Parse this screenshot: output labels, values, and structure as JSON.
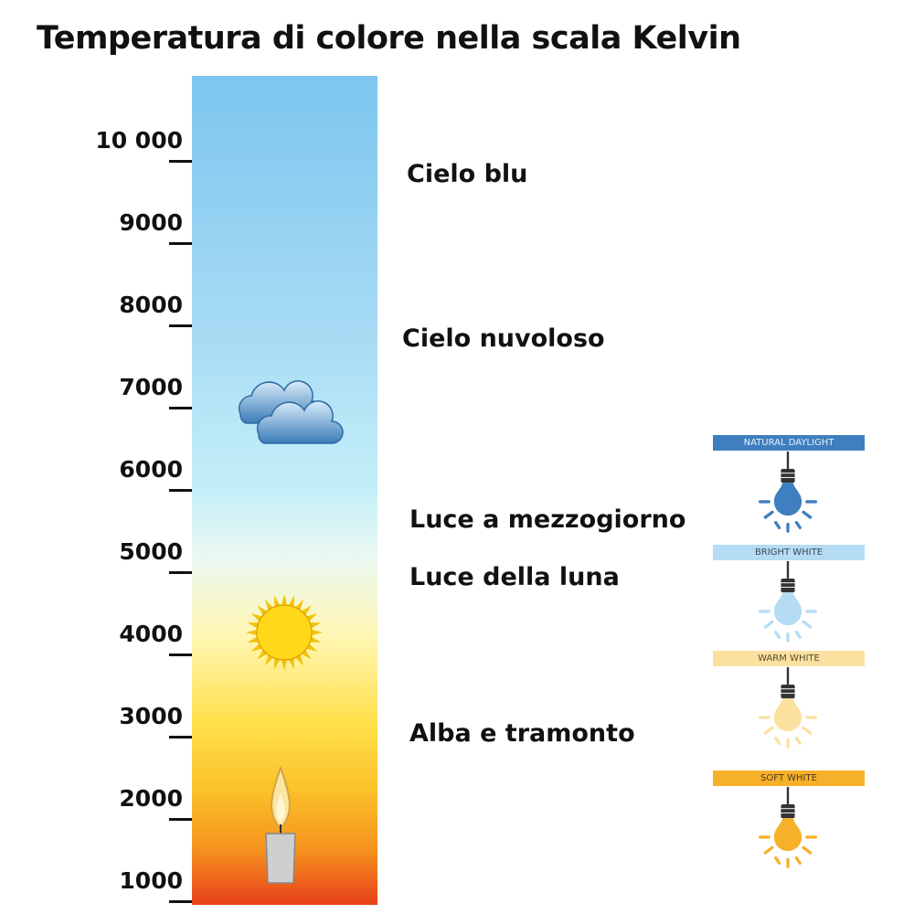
{
  "title": "Temperatura di colore nella scala Kelvin",
  "scale": {
    "ticks": [
      "10 000",
      "9000",
      "8000",
      "7000",
      "6000",
      "5000",
      "4000",
      "3000",
      "2000",
      "1000"
    ]
  },
  "labels": [
    {
      "text": "Cielo blu",
      "kelvin": 9800
    },
    {
      "text": "Cielo nuvoloso",
      "kelvin": 7800
    },
    {
      "text": "Luce a mezzogiorno",
      "kelvin": 5600
    },
    {
      "text": "Luce della luna",
      "kelvin": 4900
    },
    {
      "text": "Alba e tramonto",
      "kelvin": 3000
    }
  ],
  "icons": [
    "cloud-icon",
    "sun-icon",
    "candle-icon"
  ],
  "bulbs": [
    {
      "label": "NATURAL DAYLIGHT",
      "color": "#3f7fbf",
      "banner": "#3f7fbf",
      "text_color": "#e8f1fa"
    },
    {
      "label": "BRIGHT WHITE",
      "color": "#b5dcf3",
      "banner": "#b5dcf3",
      "text_color": "#3a4a5a"
    },
    {
      "label": "WARM WHITE",
      "color": "#fbe1a0",
      "banner": "#fbe1a0",
      "text_color": "#5a4a30"
    },
    {
      "label": "SOFT WHITE",
      "color": "#f7b02a",
      "banner": "#f7b02a",
      "text_color": "#4a3a20"
    }
  ]
}
